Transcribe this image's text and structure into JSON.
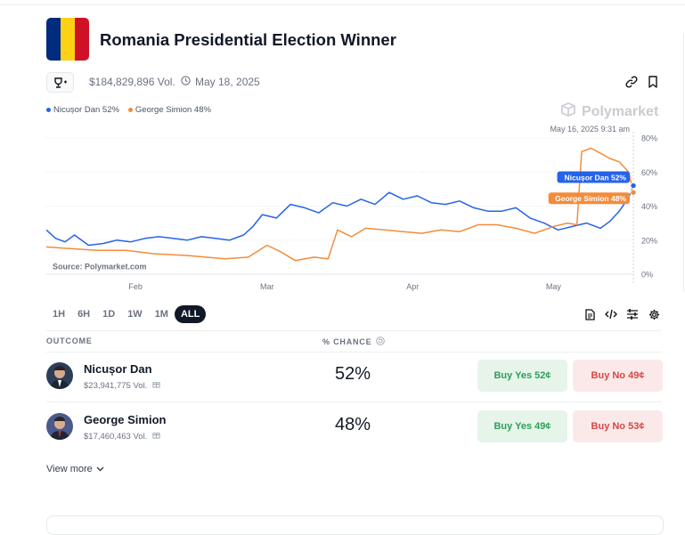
{
  "market": {
    "title": "Romania Presidential Election Winner",
    "volume": "$184,829,896 Vol.",
    "date": "May 18, 2025",
    "flag_colors": [
      "#002b7f",
      "#fcd116",
      "#ce1126"
    ],
    "brand": "Polymarket",
    "icons": {
      "trophy": "trophy-plus-icon",
      "clock": "clock-icon",
      "link": "link-icon",
      "bookmark": "bookmark-icon"
    }
  },
  "legend": [
    {
      "label": "Nicușor Dan 52%",
      "color": "#2563eb"
    },
    {
      "label": "George Simion 48%",
      "color": "#f28c3b"
    }
  ],
  "chart_data": {
    "type": "line",
    "x_ticks": [
      "Feb",
      "Mar",
      "Apr",
      "May"
    ],
    "y_ticks": [
      "80%",
      "60%",
      "40%",
      "20%",
      "0%"
    ],
    "ylim": [
      0,
      80
    ],
    "hover_date": "May 16, 2025 9:31 am",
    "source": "Source: Polymarket.com",
    "end_labels": [
      "Nicușor Dan 52%",
      "George Simion 48%"
    ],
    "series": [
      {
        "name": "Nicușor Dan",
        "color": "#2563eb",
        "points": [
          [
            "2025-01-13",
            26
          ],
          [
            "2025-01-15",
            21
          ],
          [
            "2025-01-17",
            19
          ],
          [
            "2025-01-19",
            23
          ],
          [
            "2025-01-22",
            17
          ],
          [
            "2025-01-25",
            18
          ],
          [
            "2025-01-28",
            20
          ],
          [
            "2025-01-31",
            19
          ],
          [
            "2025-02-03",
            21
          ],
          [
            "2025-02-06",
            22
          ],
          [
            "2025-02-09",
            21
          ],
          [
            "2025-02-12",
            20
          ],
          [
            "2025-02-15",
            22
          ],
          [
            "2025-02-18",
            21
          ],
          [
            "2025-02-21",
            20
          ],
          [
            "2025-02-24",
            23
          ],
          [
            "2025-02-26",
            28
          ],
          [
            "2025-02-28",
            35
          ],
          [
            "2025-03-03",
            33
          ],
          [
            "2025-03-06",
            41
          ],
          [
            "2025-03-09",
            39
          ],
          [
            "2025-03-12",
            36
          ],
          [
            "2025-03-15",
            42
          ],
          [
            "2025-03-18",
            40
          ],
          [
            "2025-03-21",
            44
          ],
          [
            "2025-03-24",
            41
          ],
          [
            "2025-03-27",
            48
          ],
          [
            "2025-03-30",
            44
          ],
          [
            "2025-04-02",
            46
          ],
          [
            "2025-04-05",
            42
          ],
          [
            "2025-04-08",
            41
          ],
          [
            "2025-04-11",
            43
          ],
          [
            "2025-04-14",
            39
          ],
          [
            "2025-04-17",
            37
          ],
          [
            "2025-04-20",
            37
          ],
          [
            "2025-04-23",
            39
          ],
          [
            "2025-04-26",
            33
          ],
          [
            "2025-04-29",
            30
          ],
          [
            "2025-05-02",
            26
          ],
          [
            "2025-05-05",
            28
          ],
          [
            "2025-05-08",
            30
          ],
          [
            "2025-05-11",
            27
          ],
          [
            "2025-05-13",
            31
          ],
          [
            "2025-05-15",
            37
          ],
          [
            "2025-05-17",
            45
          ],
          [
            "2025-05-18",
            52
          ]
        ]
      },
      {
        "name": "George Simion",
        "color": "#f28c3b",
        "points": [
          [
            "2025-01-13",
            16
          ],
          [
            "2025-01-18",
            15
          ],
          [
            "2025-01-24",
            14
          ],
          [
            "2025-01-30",
            14
          ],
          [
            "2025-02-05",
            12
          ],
          [
            "2025-02-12",
            11
          ],
          [
            "2025-02-20",
            9
          ],
          [
            "2025-02-25",
            10
          ],
          [
            "2025-03-01",
            17
          ],
          [
            "2025-03-04",
            13
          ],
          [
            "2025-03-07",
            8
          ],
          [
            "2025-03-11",
            10
          ],
          [
            "2025-03-14",
            9
          ],
          [
            "2025-03-16",
            26
          ],
          [
            "2025-03-19",
            22
          ],
          [
            "2025-03-22",
            27
          ],
          [
            "2025-03-26",
            26
          ],
          [
            "2025-03-30",
            25
          ],
          [
            "2025-04-03",
            24
          ],
          [
            "2025-04-07",
            26
          ],
          [
            "2025-04-11",
            25
          ],
          [
            "2025-04-15",
            29
          ],
          [
            "2025-04-19",
            29
          ],
          [
            "2025-04-23",
            27
          ],
          [
            "2025-04-27",
            24
          ],
          [
            "2025-05-01",
            28
          ],
          [
            "2025-05-04",
            30
          ],
          [
            "2025-05-06",
            29
          ],
          [
            "2025-05-07",
            72
          ],
          [
            "2025-05-09",
            74
          ],
          [
            "2025-05-11",
            71
          ],
          [
            "2025-05-13",
            68
          ],
          [
            "2025-05-15",
            66
          ],
          [
            "2025-05-17",
            60
          ],
          [
            "2025-05-18",
            48
          ]
        ]
      }
    ]
  },
  "ranges": [
    "1H",
    "6H",
    "1D",
    "1W",
    "1M",
    "ALL"
  ],
  "active_range": "ALL",
  "toolbar_icons": [
    "document-icon",
    "embed-code-icon",
    "sliders-icon",
    "settings-gear-icon"
  ],
  "table": {
    "headers": {
      "outcome": "OUTCOME",
      "chance": "% CHANCE"
    },
    "rows": [
      {
        "name": "Nicușor Dan",
        "volume": "$23,941,775 Vol.",
        "chance": "52%",
        "buy_yes": "Buy Yes 52¢",
        "buy_no": "Buy No 49¢"
      },
      {
        "name": "George Simion",
        "volume": "$17,460,463 Vol.",
        "chance": "48%",
        "buy_yes": "Buy Yes 49¢",
        "buy_no": "Buy No 53¢"
      }
    ]
  },
  "view_more": "View more"
}
